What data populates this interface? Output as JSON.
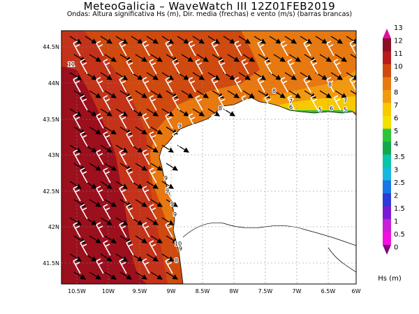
{
  "header": {
    "title": "MeteoGalicia  –  WaveWatch III   12Z01FEB2019",
    "subtitle": "Ondas: Altura significativa Hs (m), Dir. media (frechas) e vento (m/s) (barras brancas)"
  },
  "map": {
    "lat_labels": [
      "44.5N",
      "44N",
      "43.5N",
      "43N",
      "42.5N",
      "42N",
      "41.5N"
    ],
    "lon_labels": [
      "10.5W",
      "10W",
      "9.5W",
      "9W",
      "8.5W",
      "8W",
      "7.5W",
      "7W",
      "6.5W",
      "6W"
    ],
    "contour_labels": [
      "11",
      "9",
      "9",
      "9",
      "9",
      "9",
      "10",
      "8",
      "8",
      "8",
      "7",
      "7",
      "6",
      "6",
      "5",
      "5",
      "9",
      "8"
    ]
  },
  "colorbar": {
    "unit_label": "Hs (m)",
    "ticks": [
      "13",
      "12",
      "11",
      "10",
      "9",
      "8",
      "7",
      "6",
      "5",
      "4",
      "3.5",
      "3",
      "2.5",
      "2",
      "1.5",
      "1",
      "0.5",
      "0"
    ],
    "colors": [
      "#e0109a",
      "#8b0f28",
      "#b91c1c",
      "#d0490f",
      "#e87810",
      "#f29a0f",
      "#f8c800",
      "#f2e000",
      "#2dc43c",
      "#12a84b",
      "#08c4a8",
      "#17b8e0",
      "#1877e6",
      "#2b3bd6",
      "#7a1ad4",
      "#c81ed6",
      "#f210e0",
      "#7a0a7a"
    ]
  }
}
